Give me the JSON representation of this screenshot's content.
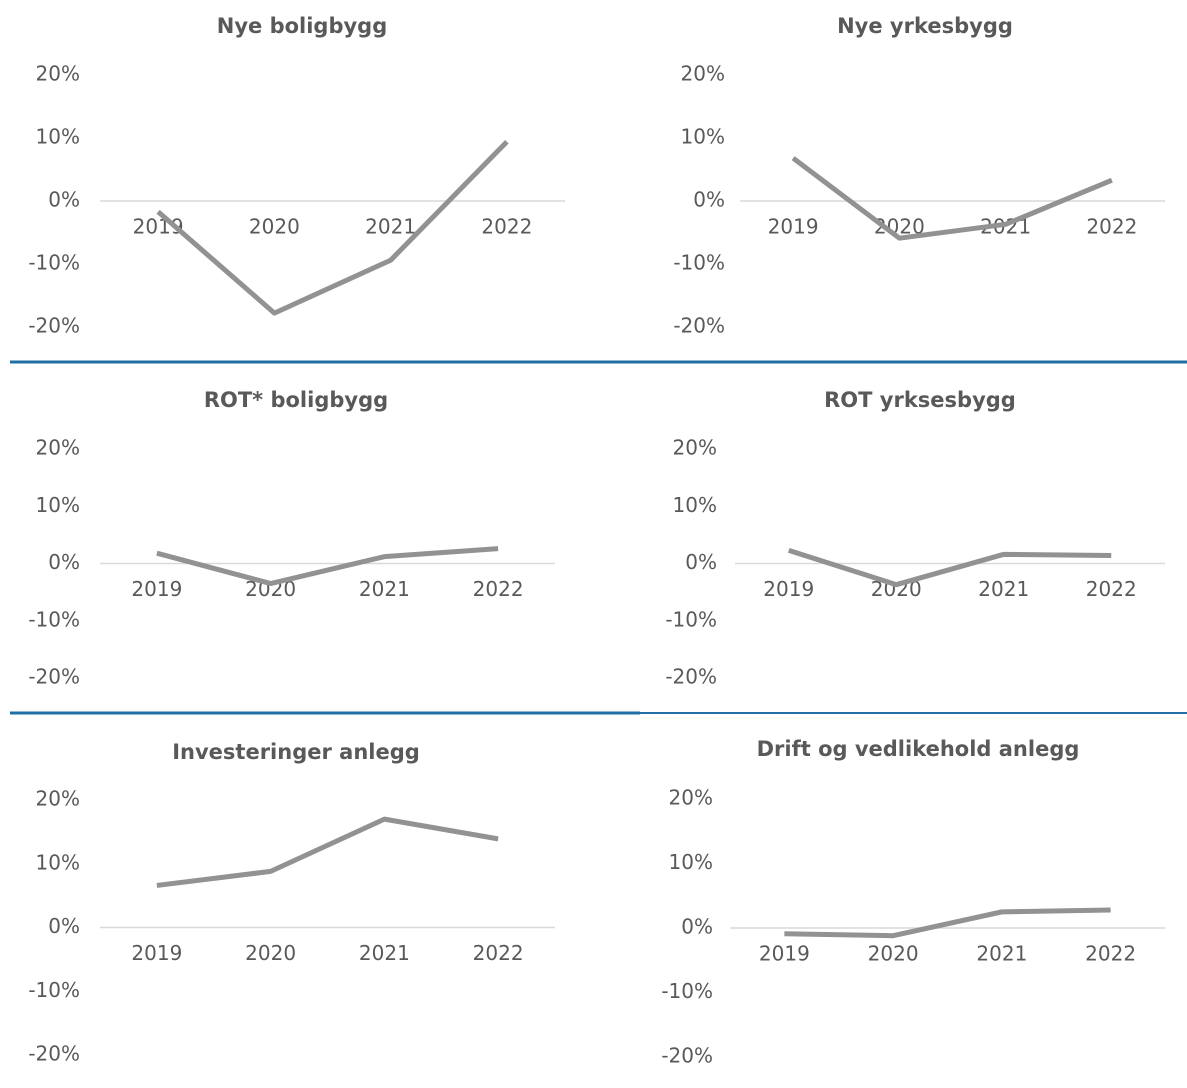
{
  "chart_data": [
    {
      "type": "line",
      "title": "Nye boligbygg",
      "categories": [
        "2019",
        "2020",
        "2021",
        "2022"
      ],
      "series": [
        {
          "color": "#929292",
          "values": [
            -1.7,
            -17.8,
            -9.4,
            9.4
          ]
        }
      ],
      "ylim": [
        -20,
        20
      ],
      "yticks": [
        {
          "value": 20,
          "label": "20%"
        },
        {
          "value": 10,
          "label": "10%"
        },
        {
          "value": 0,
          "label": "0%"
        },
        {
          "value": -10,
          "label": "-10%"
        },
        {
          "value": -20,
          "label": "-20%"
        }
      ]
    },
    {
      "type": "line",
      "title": "Nye yrkesbygg",
      "categories": [
        "2019",
        "2020",
        "2021",
        "2022"
      ],
      "series": [
        {
          "color": "#929292",
          "values": [
            6.8,
            -5.9,
            -3.7,
            3.3
          ]
        }
      ],
      "ylim": [
        -20,
        20
      ],
      "yticks": [
        {
          "value": 20,
          "label": "20%"
        },
        {
          "value": 10,
          "label": "10%"
        },
        {
          "value": 0,
          "label": "0%"
        },
        {
          "value": -10,
          "label": "-10%"
        },
        {
          "value": -20,
          "label": "-20%"
        }
      ]
    },
    {
      "type": "line",
      "title": "ROT* boligbygg",
      "categories": [
        "2019",
        "2020",
        "2021",
        "2022"
      ],
      "series": [
        {
          "color": "#929292",
          "values": [
            1.8,
            -3.5,
            1.2,
            2.6
          ]
        }
      ],
      "ylim": [
        -20,
        20
      ],
      "yticks": [
        {
          "value": 20,
          "label": "20%"
        },
        {
          "value": 10,
          "label": "10%"
        },
        {
          "value": 0,
          "label": "0%"
        },
        {
          "value": -10,
          "label": "-10%"
        },
        {
          "value": -20,
          "label": "-20%"
        }
      ]
    },
    {
      "type": "line",
      "title": "ROT yrksesbygg",
      "categories": [
        "2019",
        "2020",
        "2021",
        "2022"
      ],
      "series": [
        {
          "color": "#929292",
          "values": [
            2.3,
            -3.7,
            1.6,
            1.4
          ]
        }
      ],
      "ylim": [
        -20,
        20
      ],
      "yticks": [
        {
          "value": 20,
          "label": "20%"
        },
        {
          "value": 10,
          "label": "10%"
        },
        {
          "value": 0,
          "label": "0%"
        },
        {
          "value": -10,
          "label": "-10%"
        },
        {
          "value": -20,
          "label": "-20%"
        }
      ]
    },
    {
      "type": "line",
      "title": "Investeringer anlegg",
      "categories": [
        "2019",
        "2020",
        "2021",
        "2022"
      ],
      "series": [
        {
          "color": "#929292",
          "values": [
            6.6,
            8.8,
            17.0,
            13.9
          ]
        }
      ],
      "ylim": [
        -20,
        20
      ],
      "yticks": [
        {
          "value": 20,
          "label": "20%"
        },
        {
          "value": 10,
          "label": "10%"
        },
        {
          "value": 0,
          "label": "0%"
        },
        {
          "value": -10,
          "label": "-10%"
        },
        {
          "value": -20,
          "label": "-20%"
        }
      ]
    },
    {
      "type": "line",
      "title": "Drift og vedlikehold anlegg",
      "categories": [
        "2019",
        "2020",
        "2021",
        "2022"
      ],
      "series": [
        {
          "color": "#929292",
          "values": [
            -0.9,
            -1.2,
            2.5,
            2.8
          ]
        }
      ],
      "ylim": [
        -20,
        20
      ],
      "yticks": [
        {
          "value": 20,
          "label": "20%"
        },
        {
          "value": 10,
          "label": "10%"
        },
        {
          "value": 0,
          "label": "0%"
        },
        {
          "value": -10,
          "label": "-10%"
        },
        {
          "value": -20,
          "label": "-20%"
        }
      ]
    }
  ]
}
